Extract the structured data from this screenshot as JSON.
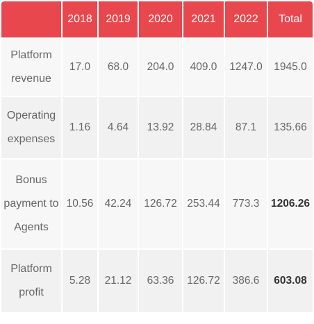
{
  "table": {
    "headers": [
      "",
      "2018",
      "2019",
      "2020",
      "2021",
      "2022",
      "Total"
    ],
    "rows": [
      {
        "label": "Platform revenue",
        "values": [
          "17.0",
          "68.0",
          "204.0",
          "409.0",
          "1247.0"
        ],
        "total": "1945.0"
      },
      {
        "label": "Operating expenses",
        "values": [
          "1.16",
          "4.64",
          "13.92",
          "28.84",
          "87.1"
        ],
        "total": "135.66"
      },
      {
        "label": "Bonus payment to Agents",
        "values": [
          "10.56",
          "42.24",
          "126.72",
          "253.44",
          "773.3"
        ],
        "total": "1206.26"
      },
      {
        "label": "Platform profit",
        "values": [
          "5.28",
          "21.12",
          "63.36",
          "126.72",
          "386.6"
        ],
        "total": "603.08"
      }
    ]
  },
  "colors": {
    "header_bg": "#e8474d",
    "header_text": "#ffffff",
    "row_bg_light": "#f7f7f7",
    "row_bg_dark": "#f1f1f1"
  }
}
